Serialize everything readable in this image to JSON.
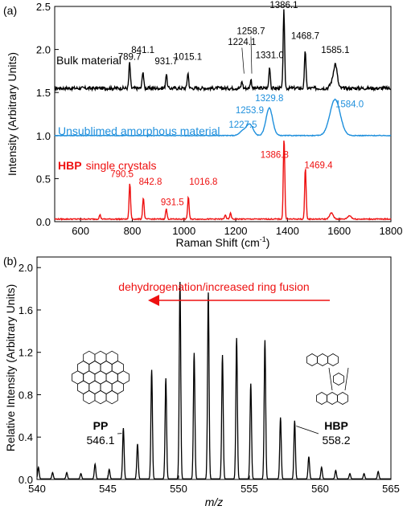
{
  "chart_data": [
    {
      "type": "line",
      "panel_label": "(a)",
      "xlabel_main": "Raman Shift (cm",
      "xlabel_sup": "-1",
      "xlabel_close": ")",
      "ylabel": "Intensity (Arbitrary Units)",
      "xlim": [
        500,
        1800
      ],
      "ylim": [
        0,
        2.5
      ],
      "xticks": [
        600,
        800,
        1000,
        1200,
        1400,
        1600,
        1800
      ],
      "xtick_labels": [
        "600",
        "800",
        "1000",
        "1200",
        "1400",
        "1600",
        "1800"
      ],
      "yticks": [
        0.0,
        0.5,
        1.0,
        1.5,
        2.0,
        2.5
      ],
      "ytick_labels": [
        "0.0",
        "0.5",
        "1.0",
        "1.5",
        "2.0",
        "2.5"
      ],
      "series": [
        {
          "name": "Bulk material",
          "color": "#000000",
          "baseline": 1.55,
          "peaks": [
            [
              789.7,
              0.3
            ],
            [
              841.1,
              0.2
            ],
            [
              931.7,
              0.17
            ],
            [
              1015.1,
              0.18
            ],
            [
              1224.1,
              0.08
            ],
            [
              1258.7,
              0.1
            ],
            [
              1331.0,
              0.25
            ],
            [
              1386.1,
              0.9
            ],
            [
              1468.7,
              0.45
            ],
            [
              1585.1,
              0.28
            ],
            [
              1570,
              0.05
            ]
          ],
          "peak_labels": [
            {
              "text": "789.7",
              "x": 789.7,
              "y": 1.88
            },
            {
              "text": "841.1",
              "x": 841.1,
              "y": 1.96
            },
            {
              "text": "931.7",
              "x": 931.7,
              "y": 1.83
            },
            {
              "text": "1015.1",
              "x": 1015.1,
              "y": 1.88
            },
            {
              "text": "1224.1",
              "x": 1224.1,
              "y": 2.05
            },
            {
              "text": "1258.7",
              "x": 1258.7,
              "y": 2.18
            },
            {
              "text": "1331.0",
              "x": 1331.0,
              "y": 1.9
            },
            {
              "text": "1386.1",
              "x": 1386.1,
              "y": 2.48
            },
            {
              "text": "1468.7",
              "x": 1468.7,
              "y": 2.12
            },
            {
              "text": "1585.1",
              "x": 1585.1,
              "y": 1.96
            }
          ]
        },
        {
          "name": "Unsublimed amorphous material",
          "color": "#1e8fdc",
          "baseline": 1.0,
          "peaks": [
            [
              1227.5,
              0.05
            ],
            [
              1253.9,
              0.13
            ],
            [
              1329.8,
              0.32
            ],
            [
              1584.0,
              0.42
            ]
          ],
          "peak_labels": [
            {
              "text": "1227.5",
              "x": 1227.5,
              "y": 1.09
            },
            {
              "text": "1253.9",
              "x": 1253.9,
              "y": 1.26
            },
            {
              "text": "1329.8",
              "x": 1329.8,
              "y": 1.4
            },
            {
              "text": "1584.0",
              "x": 1640,
              "y": 1.33
            }
          ]
        },
        {
          "name_bold": "HBP",
          "name_rest": "single crystals",
          "color": "#ee1111",
          "baseline": 0.03,
          "peaks": [
            [
              675,
              0.05
            ],
            [
              790.5,
              0.42
            ],
            [
              842.8,
              0.25
            ],
            [
              931.5,
              0.12
            ],
            [
              1016.8,
              0.26
            ],
            [
              1386.8,
              0.95
            ],
            [
              1469.4,
              0.6
            ],
            [
              1160,
              0.05
            ],
            [
              1180,
              0.07
            ],
            [
              1570,
              0.07
            ],
            [
              1640,
              0.04
            ]
          ],
          "peak_labels": [
            {
              "text": "790.5",
              "x": 760,
              "y": 0.52
            },
            {
              "text": "842.8",
              "x": 870,
              "y": 0.43
            },
            {
              "text": "931.5",
              "x": 955,
              "y": 0.19
            },
            {
              "text": "1016.8",
              "x": 1075,
              "y": 0.43
            },
            {
              "text": "1386.8",
              "x": 1350,
              "y": 0.74
            },
            {
              "text": "1469.4",
              "x": 1520,
              "y": 0.62
            }
          ]
        }
      ]
    },
    {
      "type": "line",
      "panel_label": "(b)",
      "xlabel": "m/z",
      "ylabel": "Relative Intensity (Arbitrary Units)",
      "xlim": [
        540,
        565
      ],
      "ylim": [
        0,
        2.1
      ],
      "xticks": [
        540,
        545,
        550,
        555,
        560,
        565
      ],
      "xtick_labels": [
        "540",
        "545",
        "550",
        "555",
        "560",
        "565"
      ],
      "yticks": [
        0.0,
        0.4,
        0.8,
        1.2,
        1.6,
        2.0
      ],
      "ytick_labels": [
        "0.0",
        "0.4",
        "0.8",
        "1.2",
        "1.6",
        "2.0"
      ],
      "series": [
        {
          "color": "#000000",
          "peaks": [
            [
              540.1,
              0.11
            ],
            [
              541.1,
              0.06
            ],
            [
              542.1,
              0.06
            ],
            [
              543.1,
              0.05
            ],
            [
              544.1,
              0.14
            ],
            [
              545.1,
              0.09
            ],
            [
              546.1,
              0.48
            ],
            [
              547.1,
              0.33
            ],
            [
              548.1,
              1.03
            ],
            [
              549.1,
              0.95
            ],
            [
              550.1,
              1.86
            ],
            [
              551.1,
              1.19
            ],
            [
              552.1,
              1.76
            ],
            [
              553.1,
              1.17
            ],
            [
              554.1,
              1.33
            ],
            [
              555.1,
              0.9
            ],
            [
              556.1,
              1.31
            ],
            [
              557.2,
              0.58
            ],
            [
              558.2,
              0.55
            ],
            [
              559.2,
              0.21
            ],
            [
              560.1,
              0.11
            ],
            [
              561.1,
              0.08
            ],
            [
              562.1,
              0.05
            ],
            [
              563.1,
              0.05
            ],
            [
              564.1,
              0.07
            ]
          ]
        }
      ],
      "annotation": "dehydrogenation/increased ring fusion",
      "annotation_color": "#ee1111",
      "molecules": [
        {
          "name": "PP",
          "mz_label": "546.1",
          "peak_x": 546.1,
          "peak_y": 0.48
        },
        {
          "name": "HBP",
          "mz_label": "558.2",
          "peak_x": 558.2,
          "peak_y": 0.55
        }
      ]
    }
  ]
}
